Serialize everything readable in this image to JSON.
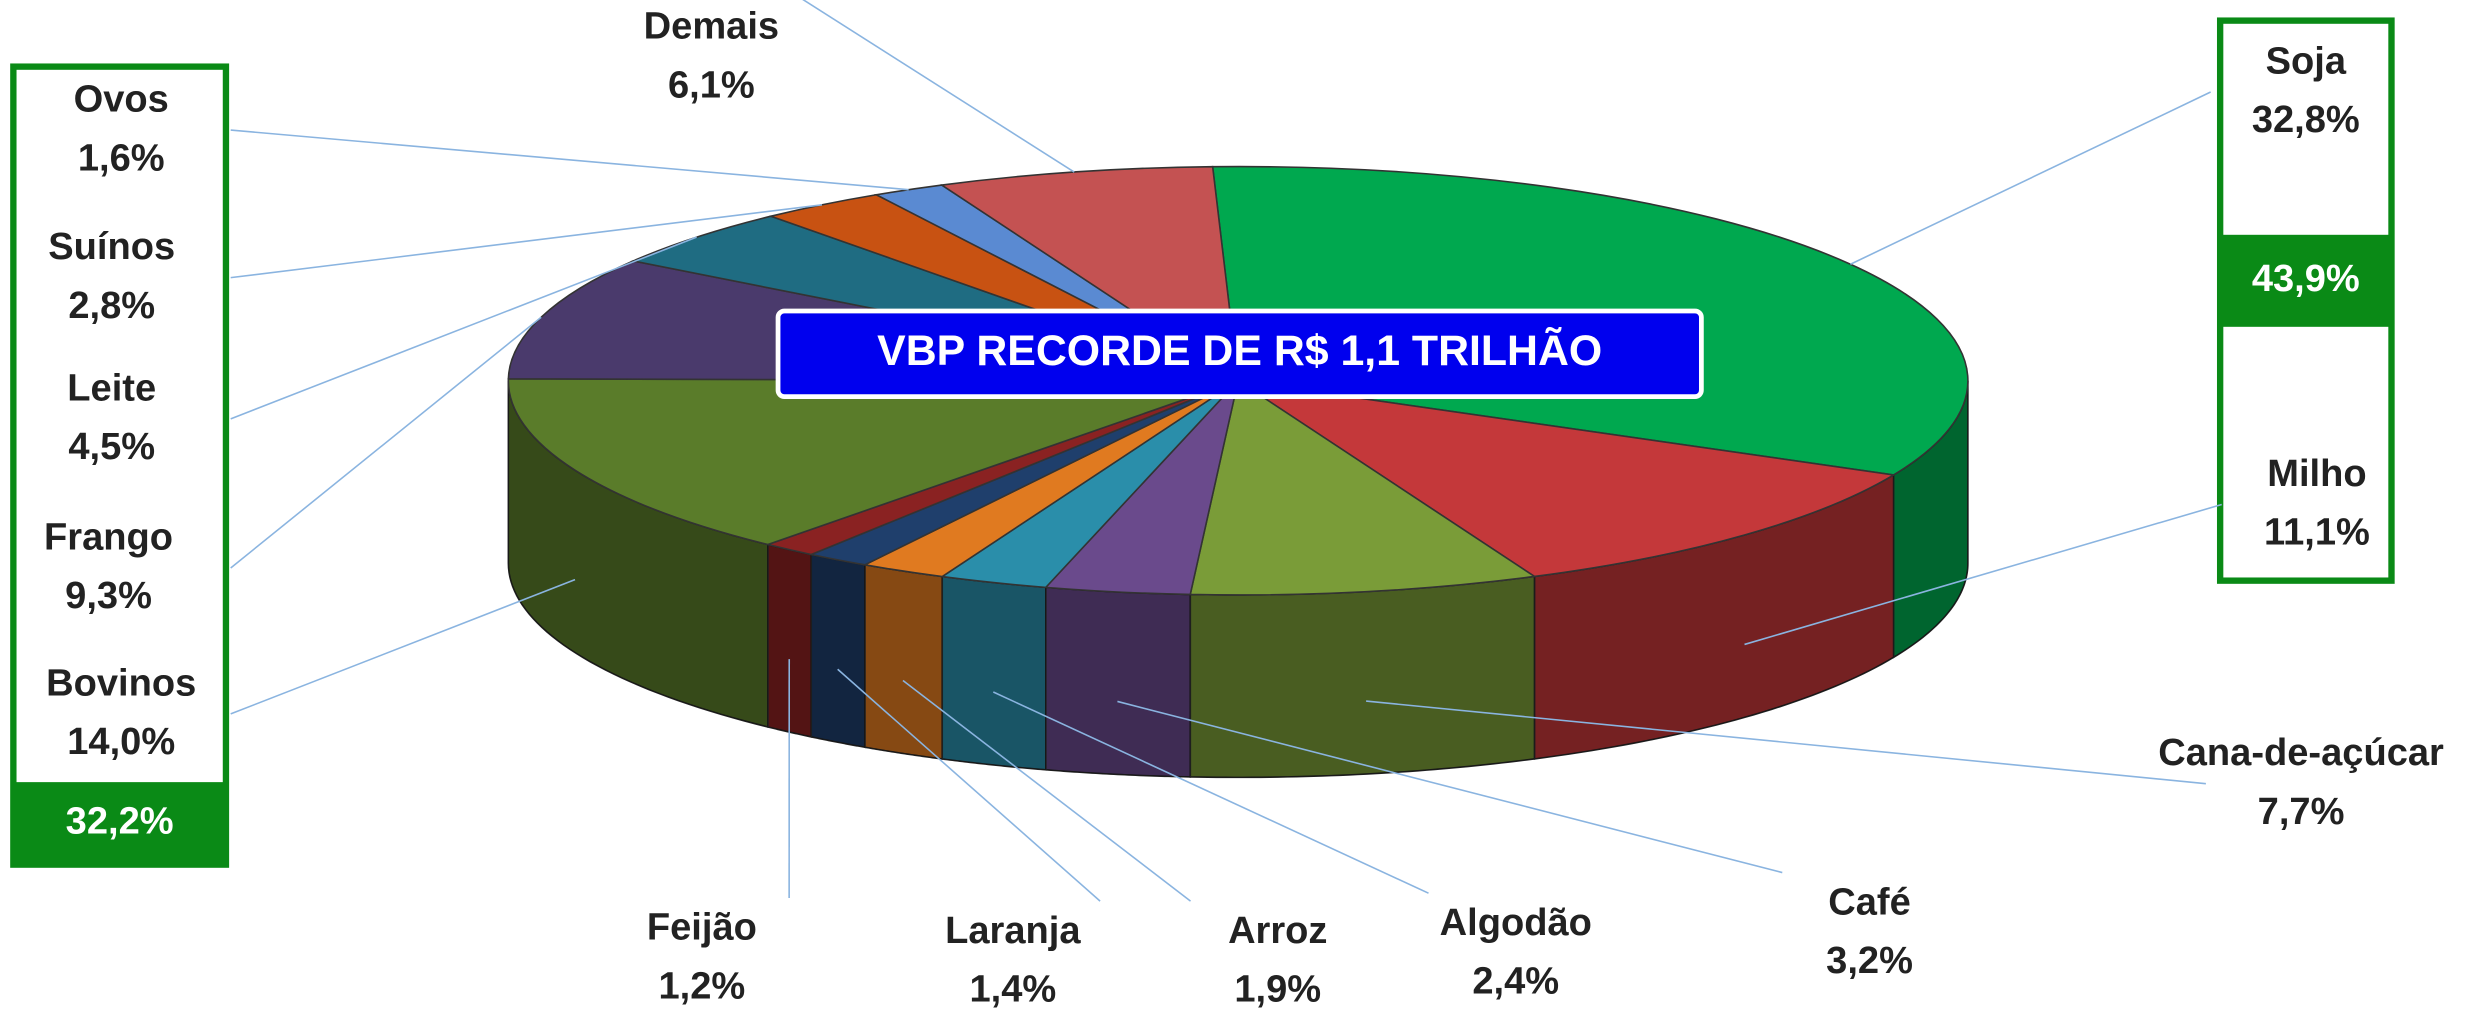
{
  "chart_data": {
    "type": "pie3d",
    "annotations": [
      "VBP RECORDE DE R$ 1,1 TRILHÃO",
      "43,9%",
      "32,2%"
    ],
    "categories": [
      "Soja",
      "Milho",
      "Cana-de-açúcar",
      "Café",
      "Algodão",
      "Arroz",
      "Laranja",
      "Feijão",
      "Bovinos",
      "Frango",
      "Leite",
      "Suínos",
      "Ovos",
      "Demais"
    ],
    "values": [
      32.8,
      11.1,
      7.7,
      3.2,
      2.4,
      1.9,
      1.4,
      1.2,
      14.0,
      9.3,
      4.5,
      2.8,
      1.6,
      6.1
    ],
    "value_labels": [
      "32,8%",
      "11,1%",
      "7,7%",
      "3,2%",
      "2,4%",
      "1,9%",
      "1,4%",
      "1,2%",
      "14,0%",
      "9,3%",
      "4,5%",
      "2,8%",
      "1,6%",
      "6,1%"
    ],
    "colors": [
      "#00a84f",
      "#c4383a",
      "#7a9c38",
      "#6a4a8c",
      "#2a8eaa",
      "#e07a20",
      "#1f3f6c",
      "#8a2222",
      "#5a7c2a",
      "#4a3a6c",
      "#1f6c82",
      "#c85212",
      "#5a8ad2",
      "#c45252"
    ]
  }
}
